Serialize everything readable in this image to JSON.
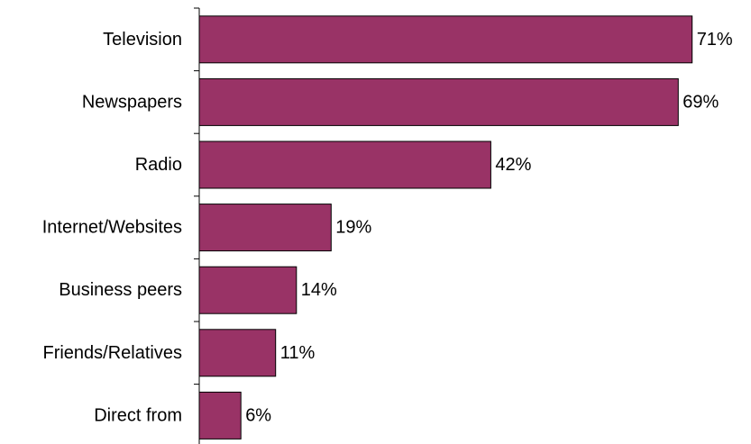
{
  "chart_data": {
    "type": "bar",
    "orientation": "horizontal",
    "categories": [
      "Television",
      "Newspapers",
      "Radio",
      "Internet/Websites",
      "Business peers",
      "Friends/Relatives",
      "Direct from"
    ],
    "values": [
      71,
      69,
      42,
      19,
      14,
      11,
      6
    ],
    "value_labels": [
      "71%",
      "69%",
      "42%",
      "19%",
      "14%",
      "11%",
      "6%"
    ],
    "title": "",
    "xlabel": "",
    "ylabel": "",
    "xlim": [
      0,
      100
    ],
    "grid": false,
    "legend": "none",
    "bar_color": "#993366",
    "bar_edge_color": "#000000"
  }
}
